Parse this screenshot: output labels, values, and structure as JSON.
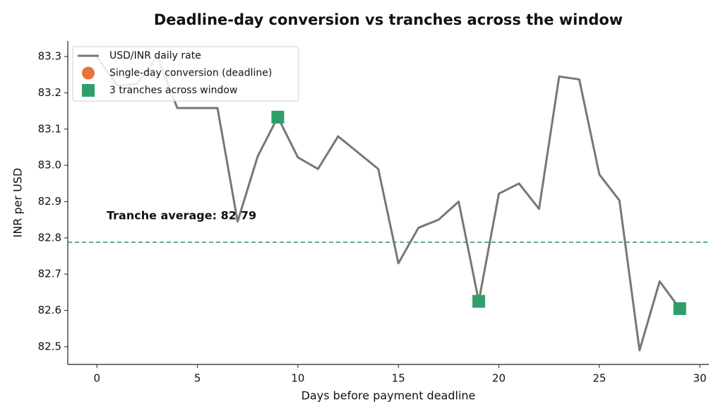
{
  "chart_data": {
    "type": "line",
    "title": "Deadline-day conversion vs tranches across the window",
    "x_label": "Days before payment deadline",
    "y_label": "INR per USD",
    "xlim": [
      -1.45,
      30.45
    ],
    "ylim": [
      82.451,
      83.343
    ],
    "xticks": [
      0,
      5,
      10,
      15,
      20,
      25,
      30
    ],
    "yticks": [
      82.5,
      82.6,
      82.7,
      82.8,
      82.9,
      {
        "value": 83,
        "label": "83.0"
      },
      83.1,
      83.2,
      83.3
    ],
    "legend": "upper left",
    "series": [
      {
        "name": "USD/INR daily rate",
        "color": "#777777",
        "marker": "line",
        "x": [
          0,
          1,
          2,
          3,
          4,
          5,
          6,
          7,
          8,
          9,
          10,
          11,
          12,
          13,
          14,
          15,
          16,
          17,
          18,
          19,
          20,
          21,
          22,
          23,
          24,
          25,
          26,
          27,
          28,
          29
        ],
        "values": [
          83.3,
          83.22,
          83.225,
          83.3,
          83.158,
          83.158,
          83.158,
          82.845,
          83.025,
          83.133,
          83.022,
          82.99,
          83.08,
          83.035,
          82.99,
          82.73,
          82.828,
          82.85,
          82.9,
          82.625,
          82.922,
          82.95,
          82.88,
          83.245,
          83.237,
          82.975,
          82.903,
          82.49,
          82.68,
          82.605
        ]
      },
      {
        "name": "Single-day conversion (deadline)",
        "color": "#e8743b",
        "marker": "circle",
        "x": [
          29
        ],
        "values": [
          82.605
        ]
      },
      {
        "name": "3 tranches across window",
        "color": "#2e9e6b",
        "marker": "square",
        "x": [
          9,
          19,
          29
        ],
        "values": [
          83.133,
          82.625,
          82.605
        ]
      }
    ],
    "hline": {
      "value": 82.788,
      "label": "Tranche average: 82.79",
      "color": "#2e9e6b"
    }
  }
}
